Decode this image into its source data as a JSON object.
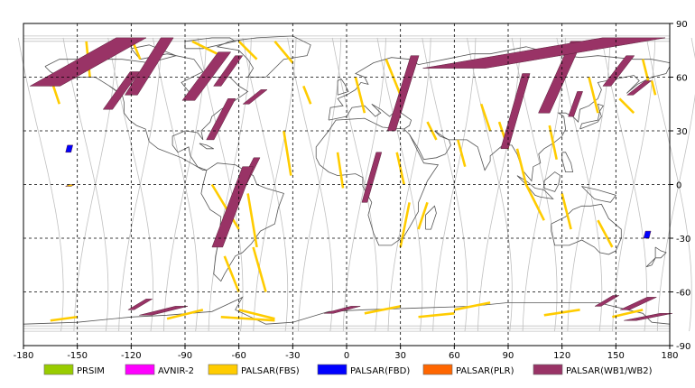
{
  "map": {
    "x_ticks": [
      "-180",
      "-150",
      "-120",
      "-90",
      "-60",
      "-30",
      "0",
      "30",
      "60",
      "90",
      "120",
      "150",
      "180"
    ],
    "y_ticks": [
      "90",
      "60",
      "30",
      "0",
      "-30",
      "-60",
      "-90"
    ],
    "lon_range": [
      -180,
      180
    ],
    "lat_range": [
      -90,
      90
    ],
    "grid": "dashed",
    "colors": {
      "grid": "#000000",
      "coast": "#555555",
      "orbit": "#c0c0c0",
      "frame": "#000000"
    }
  },
  "legend": [
    {
      "label": "PRSIM",
      "color": "#99cc00"
    },
    {
      "label": "AVNIR-2",
      "color": "#ff00ff"
    },
    {
      "label": "PALSAR(FBS)",
      "color": "#ffcc00"
    },
    {
      "label": "PALSAR(FBD)",
      "color": "#0000ff"
    },
    {
      "label": "PALSAR(PLR)",
      "color": "#ff6600"
    },
    {
      "label": "PALSAR(WB1/WB2)",
      "color": "#993366"
    }
  ],
  "footprints": [
    {
      "mode": "PALSAR(WB1/WB2)",
      "lon0": -168,
      "lat0": 55,
      "lon1": -120,
      "lat1": 82
    },
    {
      "mode": "PALSAR(WB1/WB2)",
      "lon0": -120,
      "lat0": 50,
      "lon1": -100,
      "lat1": 82
    },
    {
      "mode": "PALSAR(WB1/WB2)",
      "lon0": -133,
      "lat0": 42,
      "lon1": -118,
      "lat1": 63
    },
    {
      "mode": "PALSAR(WB1/WB2)",
      "lon0": -88,
      "lat0": 47,
      "lon1": -68,
      "lat1": 74
    },
    {
      "mode": "PALSAR(WB1/WB2)",
      "lon0": -72,
      "lat0": 55,
      "lon1": -60,
      "lat1": 72
    },
    {
      "mode": "PALSAR(WB1/WB2)",
      "lon0": -56,
      "lat0": 45,
      "lon1": -46,
      "lat1": 53
    },
    {
      "mode": "PALSAR(WB1/WB2)",
      "lon0": -76,
      "lat0": 25,
      "lon1": -64,
      "lat1": 48
    },
    {
      "mode": "PALSAR(WB1/WB2)",
      "lon0": -60,
      "lat0": -5,
      "lon1": -50,
      "lat1": 15
    },
    {
      "mode": "PALSAR(WB1/WB2)",
      "lon0": -72,
      "lat0": -35,
      "lon1": -55,
      "lat1": 10
    },
    {
      "mode": "PALSAR(WB1/WB2)",
      "lon0": 10,
      "lat0": -10,
      "lon1": 18,
      "lat1": 18
    },
    {
      "mode": "PALSAR(WB1/WB2)",
      "lon0": 25,
      "lat0": 30,
      "lon1": 38,
      "lat1": 72
    },
    {
      "mode": "PALSAR(WB1/WB2)",
      "lon0": 88,
      "lat0": 20,
      "lon1": 100,
      "lat1": 62
    },
    {
      "mode": "PALSAR(WB1/WB2)",
      "lon0": 110,
      "lat0": 40,
      "lon1": 128,
      "lat1": 80
    },
    {
      "mode": "PALSAR(WB1/WB2)",
      "lon0": 60,
      "lat0": 65,
      "lon1": 160,
      "lat1": 82
    },
    {
      "mode": "PALSAR(WB1/WB2)",
      "lon0": 125,
      "lat0": 38,
      "lon1": 130,
      "lat1": 52
    },
    {
      "mode": "PALSAR(WB1/WB2)",
      "lon0": 158,
      "lat0": 50,
      "lon1": 168,
      "lat1": 58
    },
    {
      "mode": "PALSAR(WB1/WB2)",
      "lon0": 145,
      "lat0": 55,
      "lon1": 158,
      "lat1": 72
    },
    {
      "mode": "PALSAR(WB1/WB2)",
      "lon0": -120,
      "lat0": -70,
      "lon1": -110,
      "lat1": -64
    },
    {
      "mode": "PALSAR(WB1/WB2)",
      "lon0": -112,
      "lat0": -73,
      "lon1": -92,
      "lat1": -68
    },
    {
      "mode": "PALSAR(WB1/WB2)",
      "lon0": -10,
      "lat0": -72,
      "lon1": 5,
      "lat1": -68
    },
    {
      "mode": "PALSAR(WB1/WB2)",
      "lon0": 140,
      "lat0": -68,
      "lon1": 150,
      "lat1": -62
    },
    {
      "mode": "PALSAR(WB1/WB2)",
      "lon0": 155,
      "lat0": -70,
      "lon1": 170,
      "lat1": -63
    },
    {
      "mode": "PALSAR(WB1/WB2)",
      "lon0": 158,
      "lat0": -76,
      "lon1": 178,
      "lat1": -72
    },
    {
      "mode": "PALSAR(FBS)",
      "lon0": -155,
      "lat0": -1,
      "lon1": -153,
      "lat1": 0
    },
    {
      "mode": "PALSAR(FBD)",
      "lon0": -155,
      "lat0": 18,
      "lon1": -154,
      "lat1": 22
    },
    {
      "mode": "PALSAR(FBD)",
      "lon0": 167,
      "lat0": -30,
      "lon1": 168,
      "lat1": -26
    }
  ],
  "swaths_fbs": [
    [
      -165,
      60,
      -160,
      45
    ],
    [
      -145,
      80,
      -143,
      60
    ],
    [
      -120,
      82,
      -115,
      70
    ],
    [
      -86,
      80,
      -70,
      72
    ],
    [
      -75,
      0,
      -60,
      -25
    ],
    [
      -55,
      -5,
      -50,
      -35
    ],
    [
      -52,
      -35,
      -45,
      -60
    ],
    [
      -68,
      -40,
      -60,
      -60
    ],
    [
      -60,
      80,
      -50,
      70
    ],
    [
      -40,
      80,
      -30,
      68
    ],
    [
      -24,
      55,
      -20,
      45
    ],
    [
      5,
      60,
      10,
      40
    ],
    [
      22,
      70,
      30,
      50
    ],
    [
      30,
      -35,
      35,
      -10
    ],
    [
      40,
      -25,
      45,
      -10
    ],
    [
      45,
      35,
      50,
      25
    ],
    [
      75,
      45,
      80,
      30
    ],
    [
      85,
      35,
      90,
      20
    ],
    [
      95,
      20,
      100,
      0
    ],
    [
      100,
      0,
      110,
      -20
    ],
    [
      120,
      -5,
      125,
      -25
    ],
    [
      140,
      -20,
      148,
      -35
    ],
    [
      135,
      60,
      140,
      40
    ],
    [
      152,
      48,
      160,
      40
    ],
    [
      165,
      70,
      168,
      58
    ],
    [
      170,
      58,
      172,
      50
    ],
    [
      -100,
      -75,
      -80,
      -70
    ],
    [
      -70,
      -74,
      -40,
      -76
    ],
    [
      -60,
      -70,
      -40,
      -75
    ],
    [
      10,
      -72,
      30,
      -68
    ],
    [
      40,
      -74,
      60,
      -72
    ],
    [
      60,
      -70,
      80,
      -66
    ],
    [
      110,
      -73,
      130,
      -70
    ],
    [
      148,
      -74,
      165,
      -70
    ],
    [
      -165,
      -76,
      -150,
      -74
    ],
    [
      -5,
      18,
      -2,
      -2
    ],
    [
      -35,
      30,
      -31,
      5
    ],
    [
      28,
      18,
      32,
      0
    ],
    [
      62,
      25,
      66,
      10
    ],
    [
      113,
      33,
      117,
      14
    ]
  ],
  "orbit_offsets": [
    -165,
    -140,
    -115,
    -90,
    -65,
    -40,
    -15,
    10,
    35,
    60,
    85,
    110,
    135,
    160,
    185,
    210
  ]
}
